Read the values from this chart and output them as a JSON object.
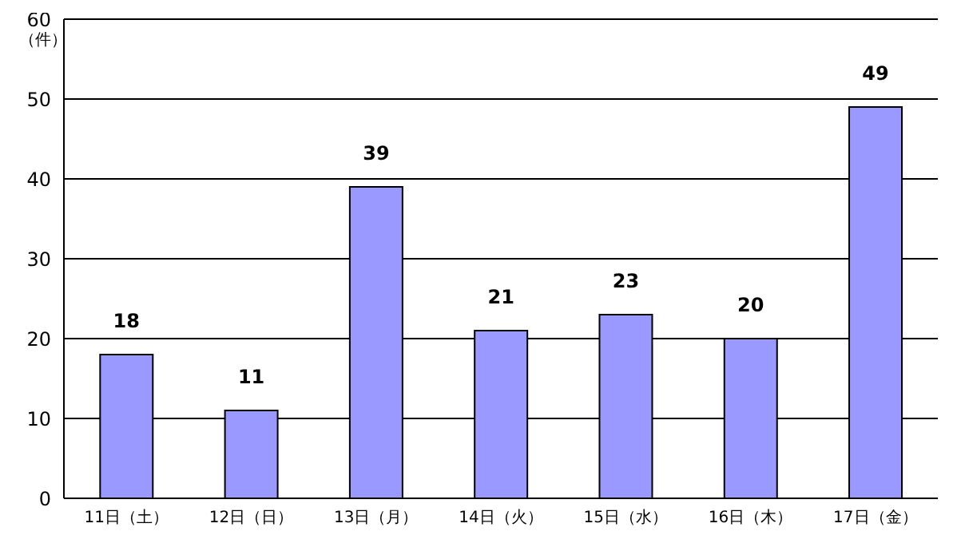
{
  "chart_data": {
    "type": "bar",
    "ylabel": "（件）",
    "categories": [
      "11日（土）",
      "12日（日）",
      "13日（月）",
      "14日（火）",
      "15日（水）",
      "16日（木）",
      "17日（金）"
    ],
    "values": [
      18,
      11,
      39,
      21,
      23,
      20,
      49
    ],
    "color": "#9999ff",
    "ylim": [
      0,
      60
    ],
    "yticks": [
      0,
      10,
      20,
      30,
      40,
      50,
      60
    ],
    "grid": "y",
    "data_labels": true
  }
}
